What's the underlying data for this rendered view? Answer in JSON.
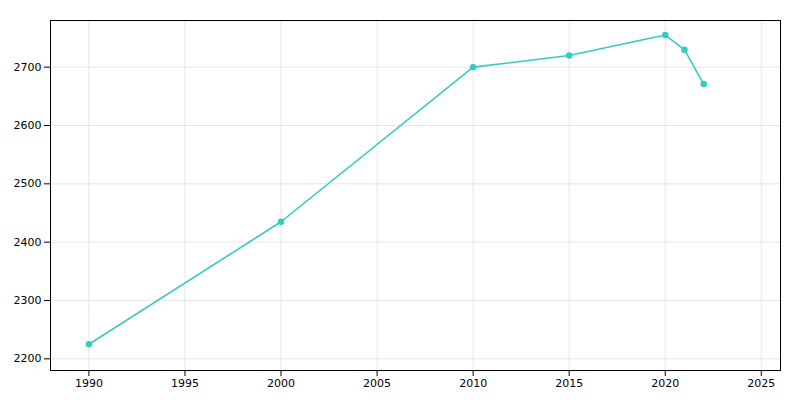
{
  "chart_data": {
    "type": "line",
    "x": [
      1990,
      2000,
      2010,
      2015,
      2020,
      2021,
      2022
    ],
    "values": [
      2225,
      2435,
      2700,
      2720,
      2755,
      2730,
      2671
    ],
    "color": "#38c9c0",
    "marker": "circle",
    "xlim": [
      1988,
      2026
    ],
    "ylim": [
      2180,
      2780
    ],
    "xticks": [
      1990,
      1995,
      2000,
      2005,
      2010,
      2015,
      2020,
      2025
    ],
    "yticks": [
      2200,
      2300,
      2400,
      2500,
      2600,
      2700
    ],
    "grid": true
  }
}
